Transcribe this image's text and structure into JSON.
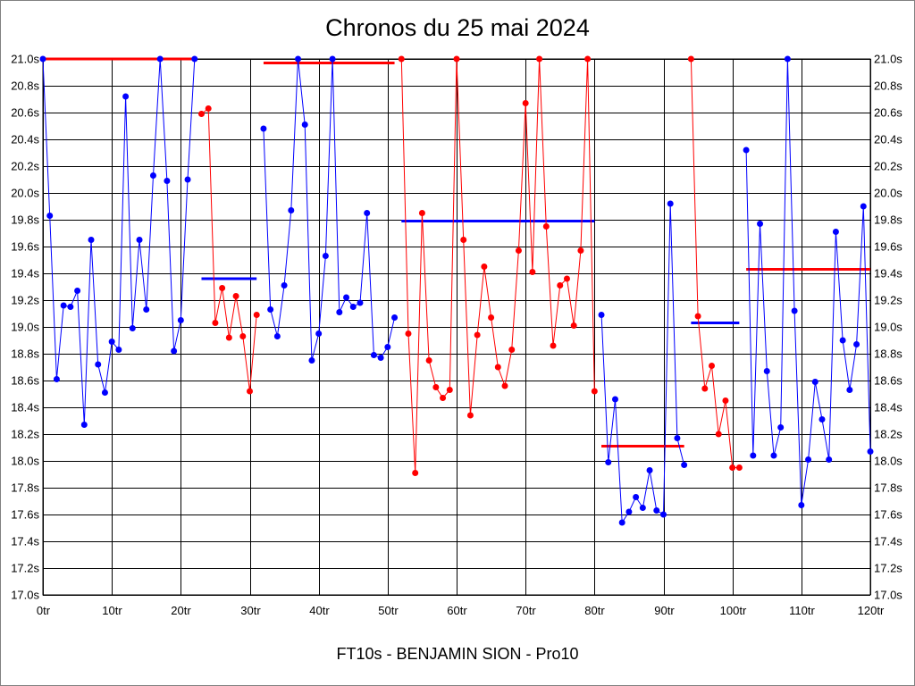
{
  "chart_data": {
    "type": "line",
    "title": "Chronos du 25 mai 2024",
    "xlabel": "FT10s - BENJAMIN SION - Pro10",
    "ylabel": "",
    "xlim": [
      0,
      120
    ],
    "ylim": [
      17.0,
      21.0
    ],
    "grid": true,
    "x_ticks": [
      0,
      10,
      20,
      30,
      40,
      50,
      60,
      70,
      80,
      90,
      100,
      110,
      120
    ],
    "x_tick_labels": [
      "0tr",
      "10tr",
      "20tr",
      "30tr",
      "40tr",
      "50tr",
      "60tr",
      "70tr",
      "80tr",
      "90tr",
      "100tr",
      "110tr",
      "120tr"
    ],
    "y_ticks": [
      17.0,
      17.2,
      17.4,
      17.6,
      17.8,
      18.0,
      18.2,
      18.4,
      18.6,
      18.8,
      19.0,
      19.2,
      19.4,
      19.6,
      19.8,
      20.0,
      20.2,
      20.4,
      20.6,
      20.8,
      21.0
    ],
    "y_tick_labels": [
      "17.0s",
      "17.2s",
      "17.4s",
      "17.6s",
      "17.8s",
      "18.0s",
      "18.2s",
      "18.4s",
      "18.6s",
      "18.8s",
      "19.0s",
      "19.2s",
      "19.4s",
      "19.6s",
      "19.8s",
      "20.0s",
      "20.2s",
      "20.4s",
      "20.6s",
      "20.8s",
      "21.0s"
    ],
    "segments": [
      {
        "color": "#0000ff",
        "start": 0,
        "values": [
          21.0,
          19.83,
          18.61,
          19.16,
          19.15,
          19.27,
          18.27,
          19.65,
          18.72,
          18.51,
          18.89,
          18.83,
          20.72,
          18.99,
          19.65,
          19.13,
          20.13,
          21.0,
          20.09,
          18.82,
          19.05,
          20.1,
          21.0
        ]
      },
      {
        "color": "#ff0000",
        "start": 23,
        "values": [
          20.59,
          20.63,
          19.03,
          19.29,
          18.92,
          19.23,
          18.93,
          18.52,
          19.09
        ]
      },
      {
        "color": "#0000ff",
        "start": 32,
        "values": [
          20.48,
          19.13,
          18.93,
          19.31,
          19.87,
          21.0,
          20.51,
          18.75,
          18.95,
          19.53,
          21.0,
          19.11,
          19.22,
          19.15,
          19.18,
          19.85,
          18.79,
          18.77,
          18.85,
          19.07
        ]
      },
      {
        "color": "#ff0000",
        "start": 52,
        "values": [
          21.0,
          18.95,
          17.91,
          19.85,
          18.75,
          18.55,
          18.47,
          18.53,
          21.0,
          19.65,
          18.34,
          18.94,
          19.45,
          19.07,
          18.7,
          18.56,
          18.83,
          19.57,
          20.67,
          19.41,
          21.0,
          19.75,
          18.86,
          19.31,
          19.36,
          19.01,
          19.57,
          21.0,
          18.52
        ]
      },
      {
        "color": "#0000ff",
        "start": 81,
        "values": [
          19.09,
          17.99,
          18.46,
          17.54,
          17.62,
          17.73,
          17.65,
          17.93,
          17.63,
          17.6,
          19.92,
          18.17,
          17.97
        ]
      },
      {
        "color": "#ff0000",
        "start": 94,
        "values": [
          21.0,
          19.08,
          18.54,
          18.71,
          18.2,
          18.45,
          17.95,
          17.95
        ]
      },
      {
        "color": "#0000ff",
        "start": 102,
        "values": [
          20.32,
          18.04,
          19.77,
          18.67,
          18.04,
          18.25,
          21.0,
          19.12,
          17.67,
          18.01,
          18.59,
          18.31,
          18.01,
          19.71,
          18.9,
          18.53,
          18.87,
          19.9,
          18.07
        ]
      }
    ],
    "reference_lines": [
      {
        "color": "#ff0000",
        "from": 0,
        "to": 22,
        "value": 21.0
      },
      {
        "color": "#0000ff",
        "from": 23,
        "to": 31,
        "value": 19.36
      },
      {
        "color": "#ff0000",
        "from": 32,
        "to": 51,
        "value": 20.97
      },
      {
        "color": "#0000ff",
        "from": 52,
        "to": 80,
        "value": 19.79
      },
      {
        "color": "#ff0000",
        "from": 81,
        "to": 93,
        "value": 18.11
      },
      {
        "color": "#0000ff",
        "from": 94,
        "to": 101,
        "value": 19.03
      },
      {
        "color": "#ff0000",
        "from": 102,
        "to": 120,
        "value": 19.43
      }
    ]
  }
}
